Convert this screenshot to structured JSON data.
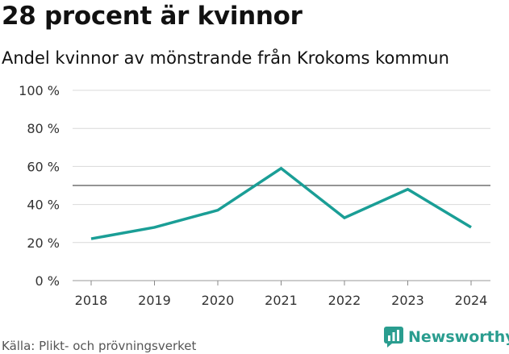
{
  "header": {
    "title": "28 procent är kvinnor",
    "subtitle": "Andel kvinnor av mönstrande från Krokoms kommun"
  },
  "footer": {
    "source": "Källa: Plikt- och prövningsverket",
    "brand": "Newsworthy"
  },
  "colors": {
    "line": "#1a9e96",
    "reference": "#555555",
    "grid": "#d9d9d9",
    "brand": "#2a9d8f"
  },
  "chart_data": {
    "type": "line",
    "title": "28 procent är kvinnor",
    "subtitle": "Andel kvinnor av mönstrande från Krokoms kommun",
    "categories": [
      "2018",
      "2019",
      "2020",
      "2021",
      "2022",
      "2023",
      "2024"
    ],
    "series": [
      {
        "name": "Andel kvinnor",
        "values": [
          22,
          28,
          37,
          59,
          33,
          48,
          28
        ]
      }
    ],
    "reference_line": 50,
    "ylim": [
      0,
      100
    ],
    "yticks": [
      0,
      20,
      40,
      60,
      80,
      100
    ],
    "ytick_labels": [
      "0 %",
      "20 %",
      "40 %",
      "60 %",
      "80 %",
      "100 %"
    ],
    "xlabel": "",
    "ylabel": "",
    "grid": true
  }
}
